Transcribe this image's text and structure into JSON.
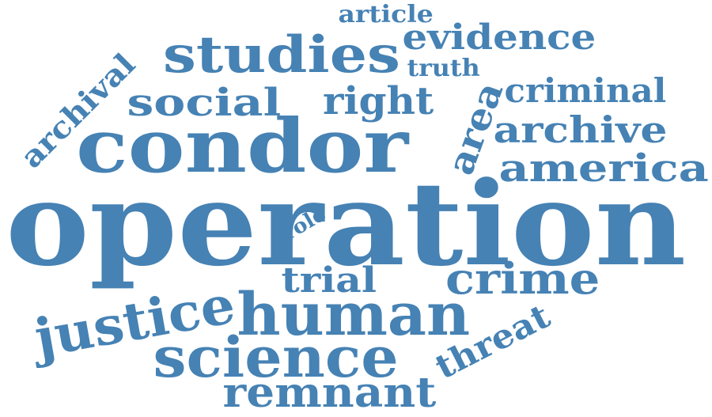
{
  "color": "#4682b4",
  "words": {
    "operation": "operation",
    "condor": "condor",
    "studies": "studies",
    "evidence": "evidence",
    "article": "article",
    "truth": "truth",
    "social": "social",
    "right": "right",
    "archival": "archival",
    "area": "area",
    "criminal": "criminal",
    "archive": "archive",
    "america": "america",
    "role": "role",
    "trial": "trial",
    "crime": "crime",
    "justice": "justice",
    "human": "human",
    "science": "science",
    "threat": "threat",
    "remnant": "remnant"
  }
}
